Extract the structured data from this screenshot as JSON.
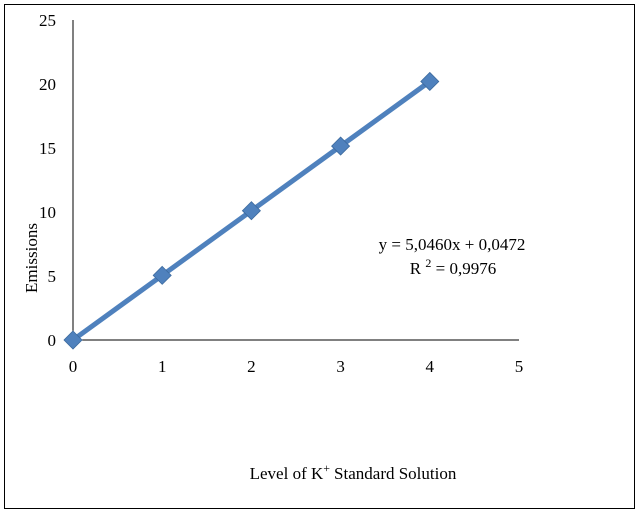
{
  "chart_data": {
    "type": "scatter",
    "title": "",
    "xlabel": "Level of K",
    "xlabel_superscript": "+",
    "xlabel_suffix": "Standard Solution",
    "ylabel": "Emissions",
    "xlim": [
      0,
      5
    ],
    "ylim": [
      0,
      25
    ],
    "x_ticks": [
      "0",
      "1",
      "2",
      "3",
      "4",
      "5"
    ],
    "y_ticks": [
      "0",
      "5",
      "10",
      "15",
      "20",
      "25"
    ],
    "series": [
      {
        "x": [
          0,
          1,
          2,
          3,
          4
        ],
        "y": [
          0,
          5.05,
          10.1,
          15.15,
          20.2
        ],
        "color": "#4f81bd",
        "marker": "diamond",
        "line": true
      }
    ],
    "trendline": {
      "slope": 5.046,
      "intercept": 0.0472,
      "equation": "y = 5,0460x  + 0,0472",
      "r2_prefix": "R ",
      "r2_superscript": "2",
      "r2_value": " = 0,9976"
    },
    "grid": false,
    "legend": "none"
  }
}
